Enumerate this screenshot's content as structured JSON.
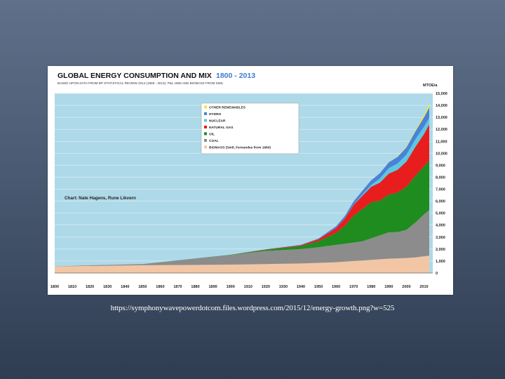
{
  "slide": {
    "caption": "https://symphonywavepowerdotcom.files.wordpress.com/2015/12/energy-growth.png?w=525"
  },
  "chart_data": {
    "type": "area",
    "stacked": true,
    "title": "GLOBAL ENERGY CONSUMPTION AND MIX",
    "date_range": "1800 - 2013",
    "subtitle": "BASED UPON DATA FROM BP STATISTICAL REVIEW 2014 (1965 - 2013), P&L 1965 AND BIOMASS FROM SMIL",
    "ylabel": "MTOE/a",
    "credit": "Chart: Nate Hagens, Rune Likvern",
    "xlim": [
      1800,
      2015
    ],
    "ylim": [
      0,
      15000
    ],
    "grid": true,
    "legend_position": "top-center",
    "x_ticks": [
      1800,
      1810,
      1820,
      1830,
      1840,
      1850,
      1860,
      1870,
      1880,
      1890,
      1900,
      1910,
      1920,
      1930,
      1940,
      1950,
      1960,
      1970,
      1980,
      1990,
      2000,
      2010
    ],
    "y_ticks": [
      0,
      1000,
      2000,
      3000,
      4000,
      5000,
      6000,
      7000,
      8000,
      9000,
      10000,
      11000,
      12000,
      13000,
      14000,
      15000
    ],
    "y_tick_labels": [
      "0",
      "1,000",
      "2,000",
      "3,000",
      "4,000",
      "5,000",
      "6,000",
      "7,000",
      "8,000",
      "9,000",
      "10,000",
      "11,000",
      "12,000",
      "13,000",
      "14,000",
      "15,000"
    ],
    "x": [
      1800,
      1850,
      1900,
      1920,
      1940,
      1950,
      1960,
      1965,
      1970,
      1975,
      1980,
      1985,
      1990,
      1995,
      2000,
      2005,
      2010,
      2013
    ],
    "series": [
      {
        "name": "BIOMASS (Smil, Fernandes from 1960)",
        "color": "#f2c6a4",
        "values": [
          550,
          650,
          700,
          750,
          800,
          850,
          900,
          950,
          1000,
          1050,
          1100,
          1150,
          1200,
          1220,
          1250,
          1300,
          1400,
          1450
        ]
      },
      {
        "name": "COAL",
        "color": "#8c8c8c",
        "values": [
          10,
          100,
          800,
          1100,
          1200,
          1300,
          1450,
          1500,
          1550,
          1600,
          1800,
          2000,
          2200,
          2200,
          2350,
          2900,
          3500,
          3800
        ]
      },
      {
        "name": "OIL",
        "color": "#1e8c1e",
        "values": [
          0,
          0,
          20,
          100,
          250,
          500,
          1000,
          1500,
          2250,
          2700,
          3000,
          2900,
          3150,
          3300,
          3600,
          3900,
          4000,
          4150
        ]
      },
      {
        "name": "NATURAL GAS",
        "color": "#e81e1e",
        "values": [
          0,
          0,
          5,
          20,
          70,
          170,
          400,
          600,
          900,
          1100,
          1300,
          1500,
          1750,
          1900,
          2100,
          2400,
          2700,
          3000
        ]
      },
      {
        "name": "NUCLEAR",
        "color": "#5cc8e0",
        "values": [
          0,
          0,
          0,
          0,
          0,
          0,
          0,
          5,
          20,
          100,
          160,
          350,
          450,
          530,
          580,
          630,
          620,
          560
        ]
      },
      {
        "name": "HYDRO",
        "color": "#4a82d8",
        "values": [
          0,
          0,
          2,
          10,
          30,
          60,
          150,
          200,
          260,
          320,
          380,
          440,
          490,
          550,
          600,
          660,
          780,
          860
        ]
      },
      {
        "name": "OTHER RENEWABLES",
        "color": "#f2e63c",
        "values": [
          0,
          0,
          0,
          0,
          0,
          0,
          0,
          0,
          0,
          0,
          5,
          10,
          20,
          30,
          50,
          80,
          170,
          280
        ]
      }
    ]
  }
}
